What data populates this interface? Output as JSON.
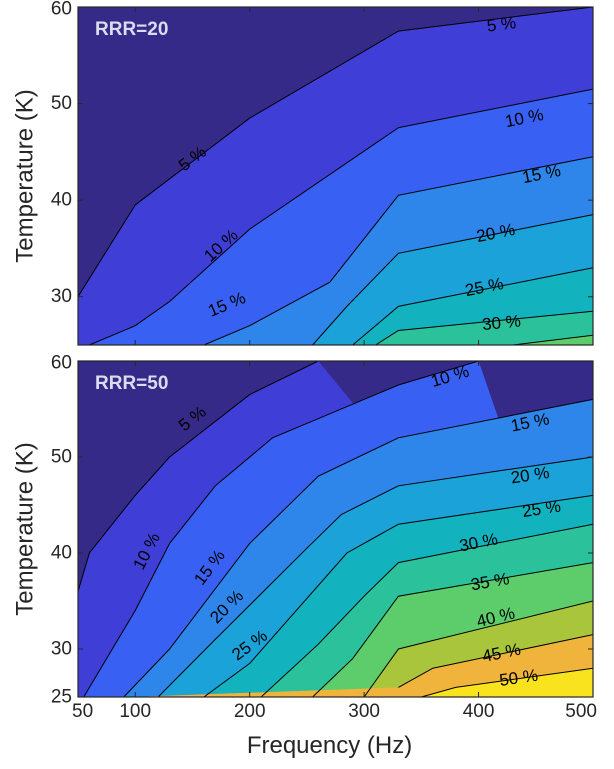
{
  "chart_data": [
    {
      "type": "contour",
      "panel_label": "RRR=20",
      "xlabel": "",
      "ylabel": "Temperature (K)",
      "xlim": [
        50,
        500
      ],
      "ylim": [
        25,
        60
      ],
      "x_ticks": [
        50,
        100,
        200,
        300,
        400,
        500
      ],
      "y_ticks": [
        30,
        40,
        50,
        60
      ],
      "y_tick_labels": [
        "30",
        "40",
        "50",
        "60"
      ],
      "levels": [
        5,
        10,
        15,
        20,
        25,
        30,
        35
      ],
      "unit": "%",
      "contours": [
        {
          "level": 5,
          "label": "5 %",
          "points": [
            [
              50,
              30
            ],
            [
              100,
              39.5
            ],
            [
              200,
              48.5
            ],
            [
              330,
              57.5
            ],
            [
              500,
              60
            ]
          ]
        },
        {
          "level": 10,
          "label": "10 %",
          "points": [
            [
              60,
              25
            ],
            [
              100,
              27
            ],
            [
              130,
              29.5
            ],
            [
              200,
              37
            ],
            [
              330,
              47.5
            ],
            [
              500,
              51.5
            ]
          ]
        },
        {
          "level": 15,
          "label": "15 %",
          "points": [
            [
              160,
              25
            ],
            [
              200,
              27
            ],
            [
              270,
              31.5
            ],
            [
              330,
              40.5
            ],
            [
              500,
              44.5
            ]
          ]
        },
        {
          "level": 20,
          "label": "20 %",
          "points": [
            [
              255,
              25
            ],
            [
              285,
              29
            ],
            [
              330,
              34.5
            ],
            [
              500,
              38.5
            ]
          ]
        },
        {
          "level": 25,
          "label": "25 %",
          "points": [
            [
              290,
              25
            ],
            [
              330,
              29
            ],
            [
              500,
              33
            ]
          ]
        },
        {
          "level": 30,
          "label": "30 %",
          "points": [
            [
              310,
              25
            ],
            [
              330,
              26.5
            ],
            [
              500,
              28.5
            ]
          ]
        },
        {
          "level": 35,
          "label": "",
          "points": [
            [
              430,
              25
            ],
            [
              500,
              26
            ]
          ]
        }
      ],
      "contour_labels": [
        {
          "text": "5 %",
          "x": 420,
          "y": 58.2
        },
        {
          "text": "5 %",
          "x": 150,
          "y": 44.3
        },
        {
          "text": "10 %",
          "x": 440,
          "y": 48.5
        },
        {
          "text": "10 %",
          "x": 175,
          "y": 35.3
        },
        {
          "text": "15 %",
          "x": 455,
          "y": 42.7
        },
        {
          "text": "15 %",
          "x": 180,
          "y": 29.2
        },
        {
          "text": "20 %",
          "x": 415,
          "y": 36.6
        },
        {
          "text": "25 %",
          "x": 405,
          "y": 31
        },
        {
          "text": "30 %",
          "x": 420,
          "y": 27.3
        }
      ]
    },
    {
      "type": "contour",
      "panel_label": "RRR=50",
      "xlabel": "Frequency (Hz)",
      "ylabel": "Temperature (K)",
      "xlim": [
        50,
        500
      ],
      "ylim": [
        25,
        60
      ],
      "x_ticks": [
        50,
        100,
        200,
        300,
        400,
        500
      ],
      "y_ticks": [
        25,
        30,
        40,
        50,
        60
      ],
      "y_tick_labels": [
        "25",
        "30",
        "40",
        "50",
        "60"
      ],
      "levels": [
        5,
        10,
        15,
        20,
        25,
        30,
        35,
        40,
        45,
        50
      ],
      "unit": "%",
      "contours": [
        {
          "level": 5,
          "label": "5 %",
          "points": [
            [
              50,
              36
            ],
            [
              60,
              40
            ],
            [
              100,
              46
            ],
            [
              130,
              50
            ],
            [
              200,
              56.5
            ],
            [
              260,
              60
            ]
          ]
        },
        {
          "level": 10,
          "label": "10 %",
          "points": [
            [
              55,
              25
            ],
            [
              80,
              30
            ],
            [
              100,
              34
            ],
            [
              130,
              41
            ],
            [
              170,
              47
            ],
            [
              220,
              52
            ],
            [
              330,
              57.5
            ],
            [
              400,
              60
            ]
          ]
        },
        {
          "level": 15,
          "label": "15 %",
          "points": [
            [
              90,
              25
            ],
            [
              130,
              30
            ],
            [
              200,
              41
            ],
            [
              260,
              48
            ],
            [
              330,
              52
            ],
            [
              500,
              56
            ]
          ]
        },
        {
          "level": 20,
          "label": "20 %",
          "points": [
            [
              120,
              25
            ],
            [
              170,
              31
            ],
            [
              250,
              40.5
            ],
            [
              280,
              44
            ],
            [
              330,
              47
            ],
            [
              500,
              50
            ]
          ]
        },
        {
          "level": 25,
          "label": "25 %",
          "points": [
            [
              160,
              25
            ],
            [
              200,
              28.5
            ],
            [
              285,
              40
            ],
            [
              330,
              43
            ],
            [
              500,
              46
            ]
          ]
        },
        {
          "level": 30,
          "label": "30 %",
          "points": [
            [
              210,
              25
            ],
            [
              260,
              30.5
            ],
            [
              300,
              35.5
            ],
            [
              330,
              39
            ],
            [
              500,
              43
            ]
          ]
        },
        {
          "level": 35,
          "label": "35 %",
          "points": [
            [
              255,
              25
            ],
            [
              290,
              29
            ],
            [
              330,
              35.5
            ],
            [
              500,
              39
            ]
          ]
        },
        {
          "level": 40,
          "label": "40 %",
          "points": [
            [
              300,
              25
            ],
            [
              330,
              30
            ],
            [
              500,
              35
            ]
          ]
        },
        {
          "level": 45,
          "label": "45 %",
          "points": [
            [
              330,
              26
            ],
            [
              360,
              28
            ],
            [
              500,
              31.5
            ]
          ]
        },
        {
          "level": 50,
          "label": "50 %",
          "points": [
            [
              350,
              25
            ],
            [
              380,
              26
            ],
            [
              500,
              28
            ]
          ]
        }
      ],
      "contour_labels": [
        {
          "text": "10 %",
          "x": 375,
          "y": 58.4
        },
        {
          "text": "5 %",
          "x": 150,
          "y": 54
        },
        {
          "text": "15 %",
          "x": 445,
          "y": 53.6
        },
        {
          "text": "20 %",
          "x": 445,
          "y": 48.1
        },
        {
          "text": "25 %",
          "x": 455,
          "y": 44.6
        },
        {
          "text": "10 %",
          "x": 110,
          "y": 40.2
        },
        {
          "text": "15 %",
          "x": 165,
          "y": 38.5
        },
        {
          "text": "30 %",
          "x": 400,
          "y": 41.1
        },
        {
          "text": "35 %",
          "x": 410,
          "y": 37
        },
        {
          "text": "20 %",
          "x": 180,
          "y": 34.4
        },
        {
          "text": "40 %",
          "x": 415,
          "y": 33.3
        },
        {
          "text": "25 %",
          "x": 200,
          "y": 30.4
        },
        {
          "text": "45 %",
          "x": 420,
          "y": 29.6
        },
        {
          "text": "50 %",
          "x": 435,
          "y": 27
        }
      ]
    }
  ]
}
